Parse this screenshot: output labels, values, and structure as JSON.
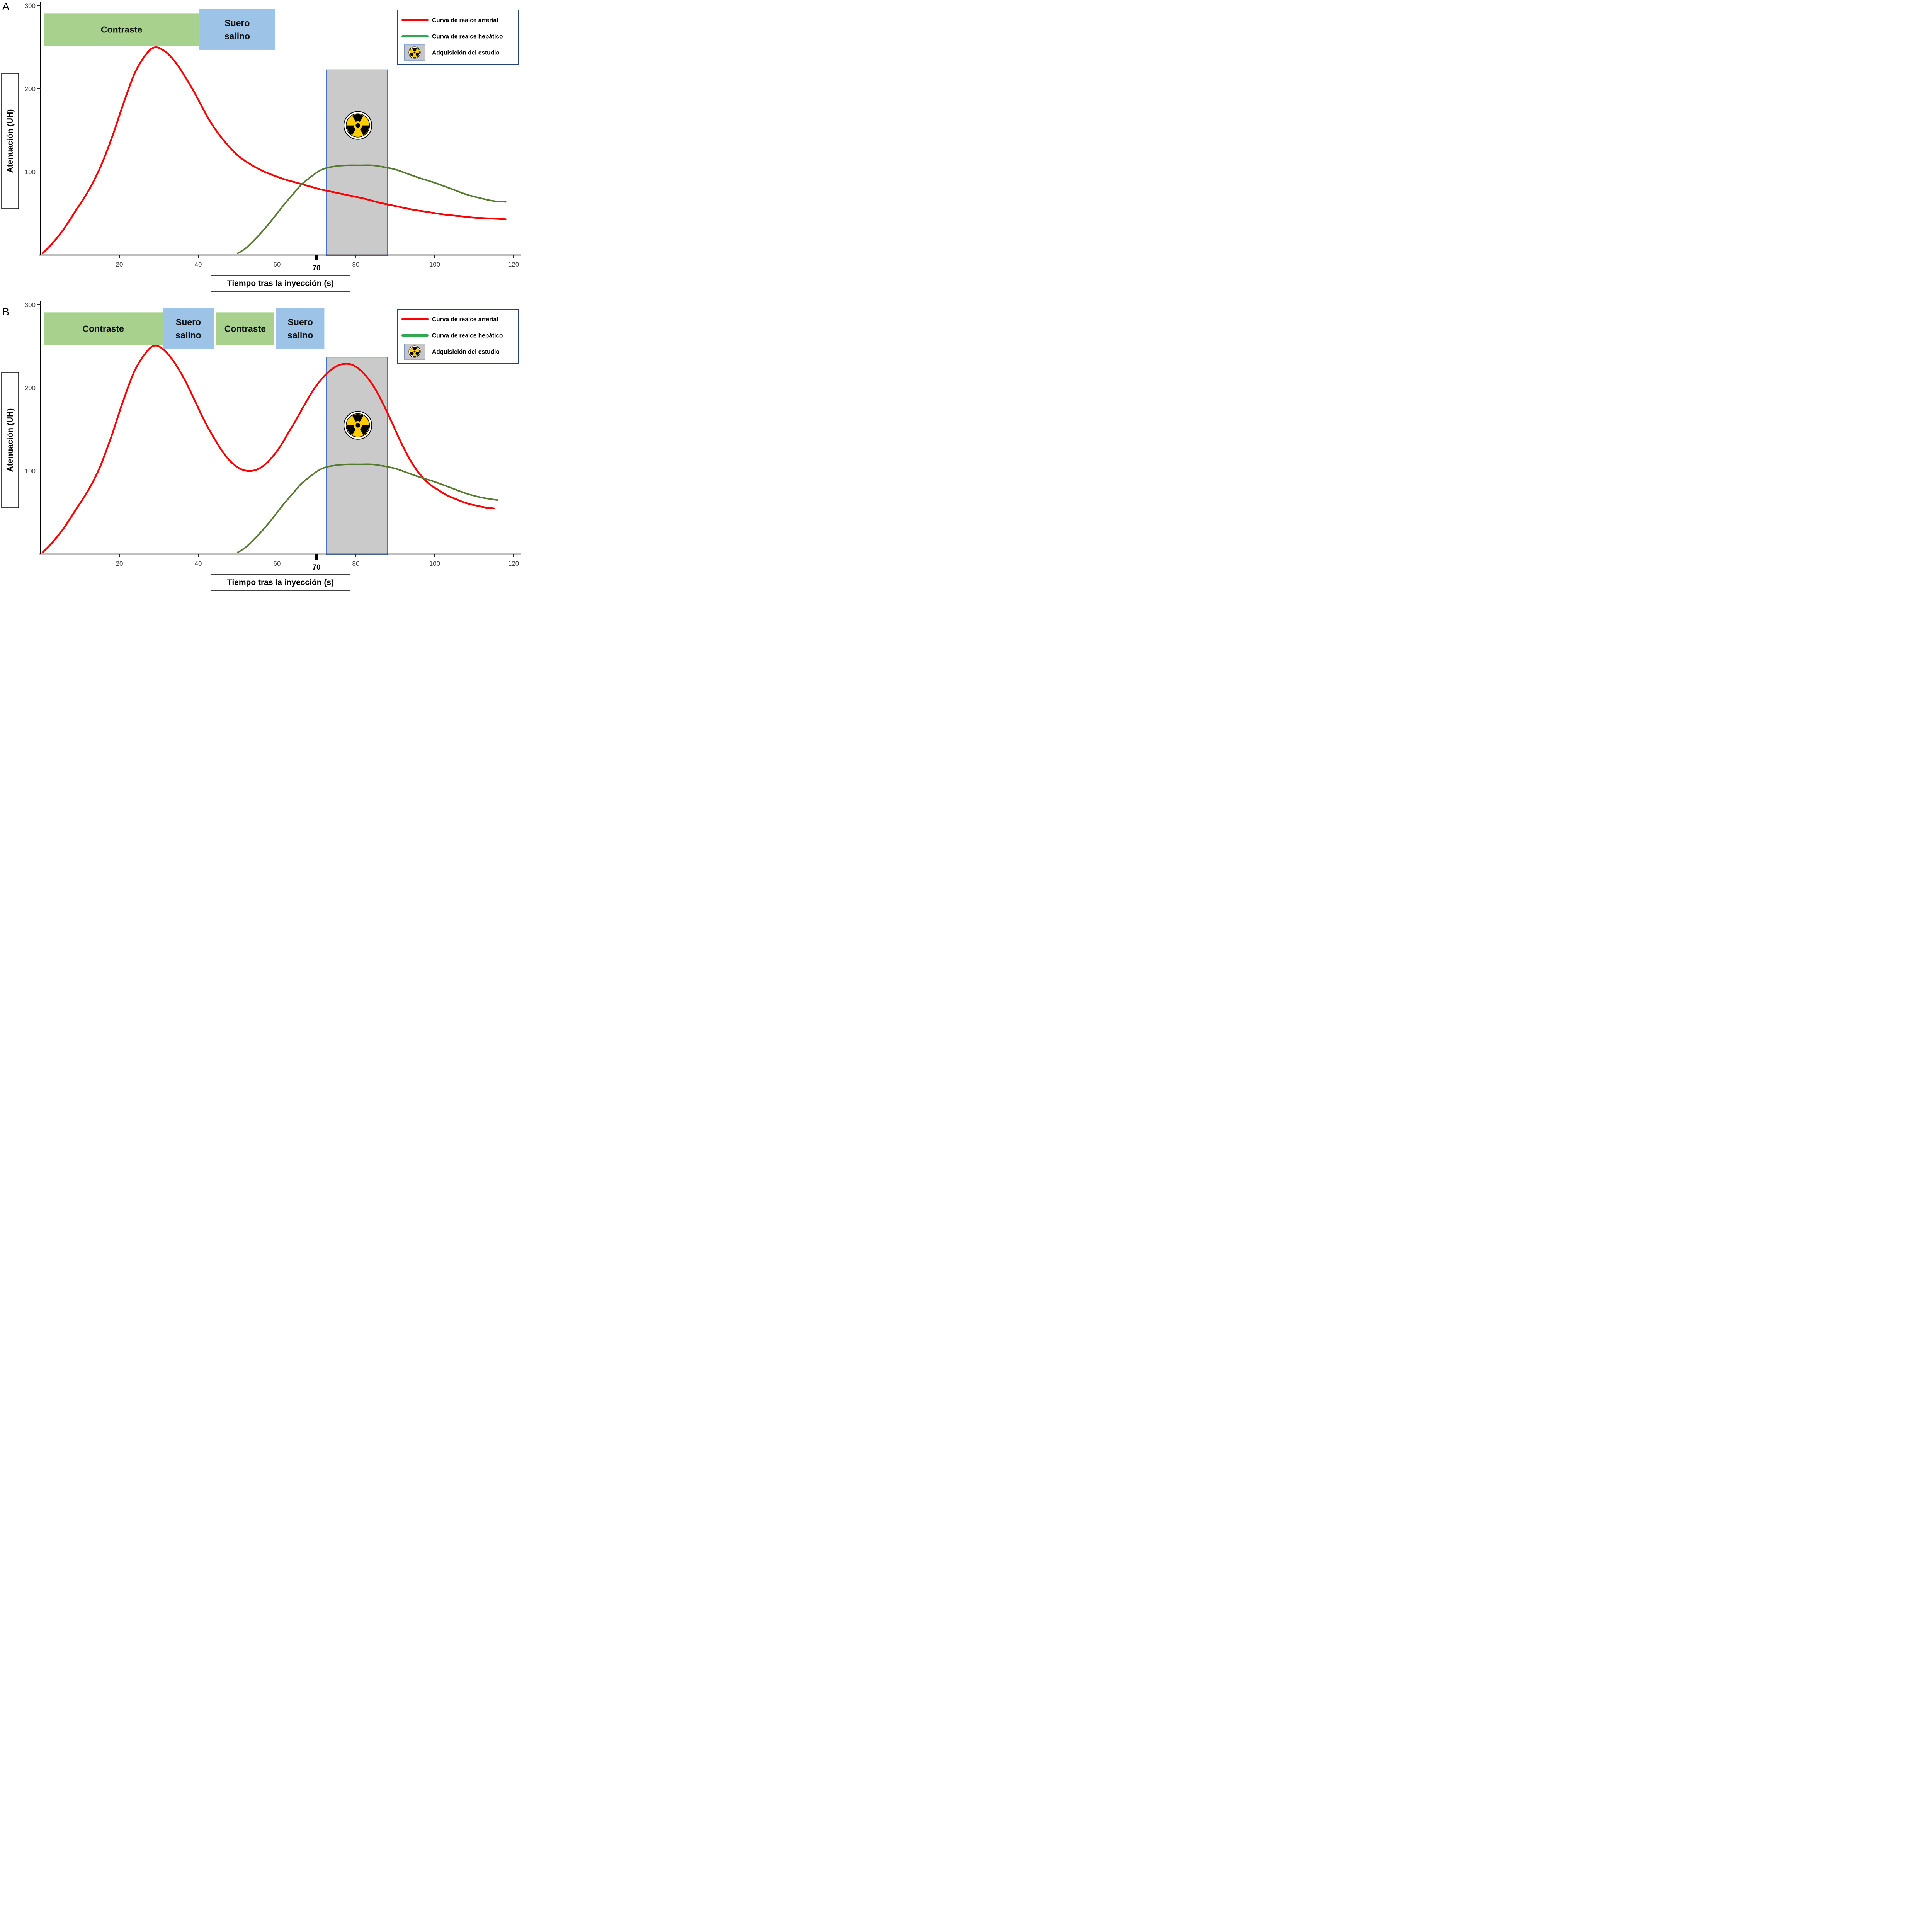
{
  "figure": {
    "background": "#FFFFFF",
    "panels": [
      {
        "letter": "A"
      },
      {
        "letter": "B"
      }
    ]
  },
  "colors": {
    "arterial": "#FE0000",
    "hepatic": "#567A2F",
    "hepatic_legend": "#2FA84F",
    "contrast_band": "#A9D18E",
    "saline_band": "#9DC3E6",
    "acquisition_fill": "#C6C6C6",
    "acquisition_border": "#4472C4",
    "legend_border": "#24427C",
    "radiation_yellow": "#FFCC00",
    "axis": "#000000",
    "tick_label": "#3F3F3F"
  },
  "legend": {
    "position": "top-right",
    "items": [
      {
        "type": "line",
        "color_key": "arterial",
        "label": "Curva de realce arterial"
      },
      {
        "type": "line",
        "color_key": "hepatic_legend",
        "label": "Curva de realce hepático"
      },
      {
        "type": "icon",
        "icon": "radiation-icon",
        "label": "Adquisición del estudio"
      }
    ]
  },
  "chart_data": [
    {
      "type": "line",
      "panel": "A",
      "title": "",
      "xlabel": "Tiempo tras la inyección (s)",
      "ylabel": "Atenuación (UH)",
      "xlim": [
        0,
        122
      ],
      "ylim": [
        0,
        305
      ],
      "grid": false,
      "xticks": [
        20,
        40,
        60,
        80,
        100,
        120
      ],
      "xtick_special": 70,
      "yticks": [
        100,
        200,
        300
      ],
      "bands": [
        {
          "kind": "contrast",
          "lines": [
            "Contraste"
          ],
          "x0": 0.8,
          "x1": 40.3,
          "y0": 252,
          "y1": 291
        },
        {
          "kind": "saline",
          "lines": [
            "Suero",
            "salino"
          ],
          "x0": 40.3,
          "x1": 59.5,
          "y0": 247,
          "y1": 296
        }
      ],
      "acquisition_window": {
        "x0": 72.5,
        "x1": 88,
        "y0": 0,
        "y1": 223,
        "icon_x": 80.5,
        "icon_y": 156
      },
      "series": [
        {
          "name": "Curva de realce arterial",
          "color_key": "arterial",
          "data_name": "arterial-curve",
          "width": 4.5,
          "points": [
            [
              0.5,
              2
            ],
            [
              3,
              14
            ],
            [
              6,
              32
            ],
            [
              9,
              54
            ],
            [
              12,
              76
            ],
            [
              15,
              104
            ],
            [
              18,
              140
            ],
            [
              21,
              182
            ],
            [
              24,
              220
            ],
            [
              27,
              243
            ],
            [
              29,
              250
            ],
            [
              31,
              247
            ],
            [
              33,
              239
            ],
            [
              35,
              227
            ],
            [
              37,
              212
            ],
            [
              39,
              196
            ],
            [
              41,
              178
            ],
            [
              43,
              161
            ],
            [
              45,
              147
            ],
            [
              47,
              135
            ],
            [
              50,
              120
            ],
            [
              53,
              110
            ],
            [
              56,
              102
            ],
            [
              59,
              96
            ],
            [
              62,
              91
            ],
            [
              65,
              87
            ],
            [
              68,
              83
            ],
            [
              71,
              79
            ],
            [
              74,
              76
            ],
            [
              78,
              72
            ],
            [
              82,
              68
            ],
            [
              86,
              63
            ],
            [
              90,
              59
            ],
            [
              94,
              55
            ],
            [
              98,
              52
            ],
            [
              102,
              49
            ],
            [
              106,
              47
            ],
            [
              110,
              45
            ],
            [
              114,
              44
            ],
            [
              118,
              43
            ]
          ]
        },
        {
          "name": "Curva de realce hepático",
          "color_key": "hepatic",
          "data_name": "hepatic-curve",
          "width": 4,
          "points": [
            [
              50,
              2
            ],
            [
              52,
              8
            ],
            [
              54,
              17
            ],
            [
              56,
              27
            ],
            [
              58,
              38
            ],
            [
              60,
              50
            ],
            [
              62,
              62
            ],
            [
              64,
              73
            ],
            [
              66,
              84
            ],
            [
              68,
              92
            ],
            [
              70,
              99
            ],
            [
              72,
              104
            ],
            [
              75,
              107
            ],
            [
              78,
              108
            ],
            [
              81,
              108
            ],
            [
              84,
              108
            ],
            [
              87,
              106
            ],
            [
              90,
              103
            ],
            [
              93,
              98
            ],
            [
              96,
              93
            ],
            [
              100,
              87
            ],
            [
              104,
              80
            ],
            [
              108,
              73
            ],
            [
              112,
              68
            ],
            [
              115,
              65
            ],
            [
              118,
              64
            ]
          ]
        }
      ]
    },
    {
      "type": "line",
      "panel": "B",
      "title": "",
      "xlabel": "Tiempo tras la inyección (s)",
      "ylabel": "Atenuación (UH)",
      "xlim": [
        0,
        122
      ],
      "ylim": [
        0,
        305
      ],
      "grid": false,
      "xticks": [
        20,
        40,
        60,
        80,
        100,
        120
      ],
      "xtick_special": 70,
      "yticks": [
        100,
        200,
        300
      ],
      "bands": [
        {
          "kind": "contrast",
          "lines": [
            "Contraste"
          ],
          "x0": 0.8,
          "x1": 31,
          "y0": 252,
          "y1": 291
        },
        {
          "kind": "saline",
          "lines": [
            "Suero",
            "salino"
          ],
          "x0": 31,
          "x1": 44,
          "y0": 247,
          "y1": 296
        },
        {
          "kind": "contrast",
          "lines": [
            "Contraste"
          ],
          "x0": 44.5,
          "x1": 59.3,
          "y0": 252,
          "y1": 291
        },
        {
          "kind": "saline",
          "lines": [
            "Suero",
            "salino"
          ],
          "x0": 59.8,
          "x1": 72,
          "y0": 247,
          "y1": 296
        }
      ],
      "acquisition_window": {
        "x0": 72.5,
        "x1": 88,
        "y0": 0,
        "y1": 237,
        "icon_x": 80.5,
        "icon_y": 155
      },
      "series": [
        {
          "name": "Curva de realce arterial",
          "color_key": "arterial",
          "data_name": "arterial-curve",
          "width": 4.5,
          "points": [
            [
              0.5,
              2
            ],
            [
              3,
              14
            ],
            [
              6,
              32
            ],
            [
              9,
              54
            ],
            [
              12,
              76
            ],
            [
              15,
              104
            ],
            [
              18,
              142
            ],
            [
              21,
              185
            ],
            [
              24,
              222
            ],
            [
              27,
              244
            ],
            [
              29,
              251
            ],
            [
              31,
              247
            ],
            [
              33,
              237
            ],
            [
              35,
              223
            ],
            [
              37,
              206
            ],
            [
              39,
              186
            ],
            [
              41,
              166
            ],
            [
              43,
              148
            ],
            [
              45,
              132
            ],
            [
              47,
              118
            ],
            [
              49,
              108
            ],
            [
              51,
              102
            ],
            [
              53,
              100
            ],
            [
              55,
              102
            ],
            [
              57,
              108
            ],
            [
              59,
              118
            ],
            [
              61,
              131
            ],
            [
              63,
              147
            ],
            [
              65,
              163
            ],
            [
              67,
              180
            ],
            [
              69,
              196
            ],
            [
              71,
              209
            ],
            [
              73,
              219
            ],
            [
              75,
              226
            ],
            [
              77,
              229
            ],
            [
              79,
              228
            ],
            [
              81,
              222
            ],
            [
              83,
              212
            ],
            [
              85,
              198
            ],
            [
              87,
              180
            ],
            [
              89,
              160
            ],
            [
              91,
              139
            ],
            [
              93,
              120
            ],
            [
              95,
              104
            ],
            [
              97,
              92
            ],
            [
              99,
              83
            ],
            [
              101,
              77
            ],
            [
              103,
              71
            ],
            [
              105,
              67
            ],
            [
              107,
              63
            ],
            [
              109,
              60
            ],
            [
              111,
              58
            ],
            [
              113,
              56
            ],
            [
              115,
              55
            ]
          ]
        },
        {
          "name": "Curva de realce hepático",
          "color_key": "hepatic",
          "data_name": "hepatic-curve",
          "width": 4,
          "points": [
            [
              50,
              2
            ],
            [
              52,
              8
            ],
            [
              54,
              17
            ],
            [
              56,
              27
            ],
            [
              58,
              38
            ],
            [
              60,
              50
            ],
            [
              62,
              62
            ],
            [
              64,
              73
            ],
            [
              66,
              84
            ],
            [
              68,
              92
            ],
            [
              70,
              99
            ],
            [
              72,
              104
            ],
            [
              75,
              107
            ],
            [
              78,
              108
            ],
            [
              81,
              108
            ],
            [
              84,
              108
            ],
            [
              87,
              106
            ],
            [
              90,
              103
            ],
            [
              93,
              98
            ],
            [
              96,
              93
            ],
            [
              100,
              87
            ],
            [
              104,
              80
            ],
            [
              108,
              73
            ],
            [
              112,
              68
            ],
            [
              116,
              65
            ]
          ]
        }
      ]
    }
  ]
}
